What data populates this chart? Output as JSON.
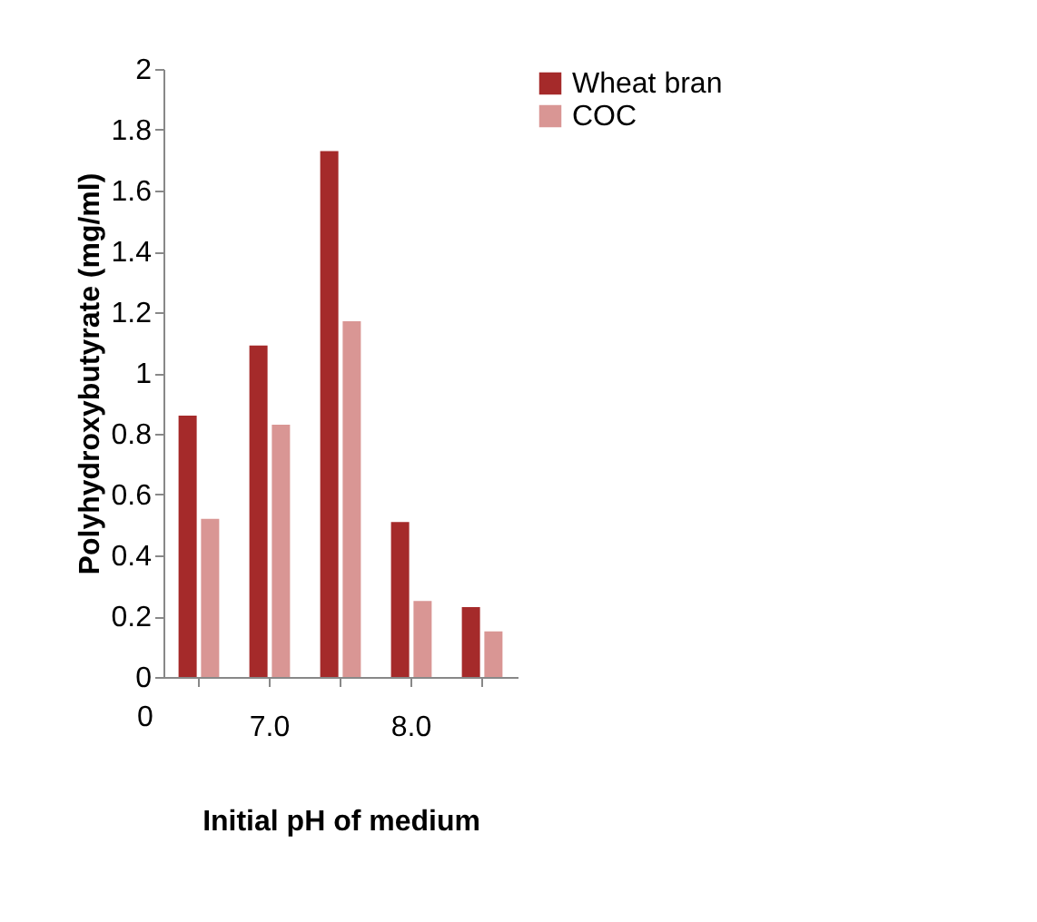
{
  "chart_data": {
    "type": "bar",
    "xlabel": "Initial pH of medium",
    "ylabel": "Polyhydroxybutyrate (mg/ml)",
    "categories": [
      null,
      "7.0",
      null,
      "8.0",
      null
    ],
    "series": [
      {
        "name": "Wheat bran",
        "color": "#a52a2a",
        "values": [
          0.86,
          1.09,
          1.73,
          0.51,
          0.23
        ]
      },
      {
        "name": "COC",
        "color": "#d99694",
        "values": [
          0.52,
          0.83,
          1.17,
          0.25,
          0.15
        ]
      }
    ],
    "ylim": [
      0,
      2
    ],
    "yticks": [
      0,
      0.2,
      0.4,
      0.6,
      0.8,
      1,
      1.2,
      1.4,
      1.6,
      1.8,
      2
    ],
    "annotations": [
      "0"
    ],
    "grid": false,
    "legend": "right"
  }
}
